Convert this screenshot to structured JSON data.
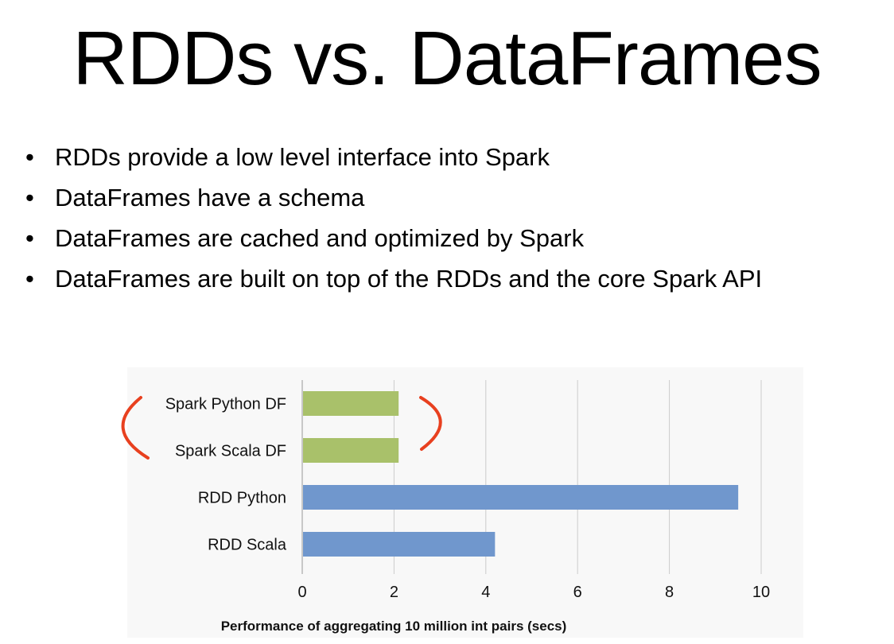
{
  "slide": {
    "title": "RDDs vs. DataFrames",
    "bullets": [
      "RDDs provide a low level interface into Spark",
      "DataFrames have a schema",
      "DataFrames are cached and optimized by Spark",
      "DataFrames are built on top of the RDDs and the core Spark API"
    ],
    "bullet_symbol": "•"
  },
  "chart_data": {
    "type": "bar",
    "orientation": "horizontal",
    "title": "",
    "xlabel": "Performance of aggregating 10 million int pairs (secs)",
    "ylabel": "",
    "categories": [
      "Spark Python DF",
      "Spark Scala DF",
      "RDD Python",
      "RDD Scala"
    ],
    "values": [
      2.1,
      2.1,
      9.5,
      4.2
    ],
    "bar_colors": [
      "#a9c16a",
      "#a9c16a",
      "#7097cd",
      "#7097cd"
    ],
    "xlim": [
      0,
      10
    ],
    "xticks": [
      0,
      2,
      4,
      6,
      8,
      10
    ],
    "grid": "vertical",
    "legend": "none",
    "annotation": {
      "type": "parentheses",
      "encloses": [
        "Spark Python DF",
        "Spark Scala DF"
      ],
      "color": "#e8401f"
    }
  },
  "colors": {
    "text": "#000000",
    "gridline": "#cccccc",
    "axis": "#999999",
    "chart_background": "#f8f8f8",
    "highlight": "#e8401f"
  }
}
